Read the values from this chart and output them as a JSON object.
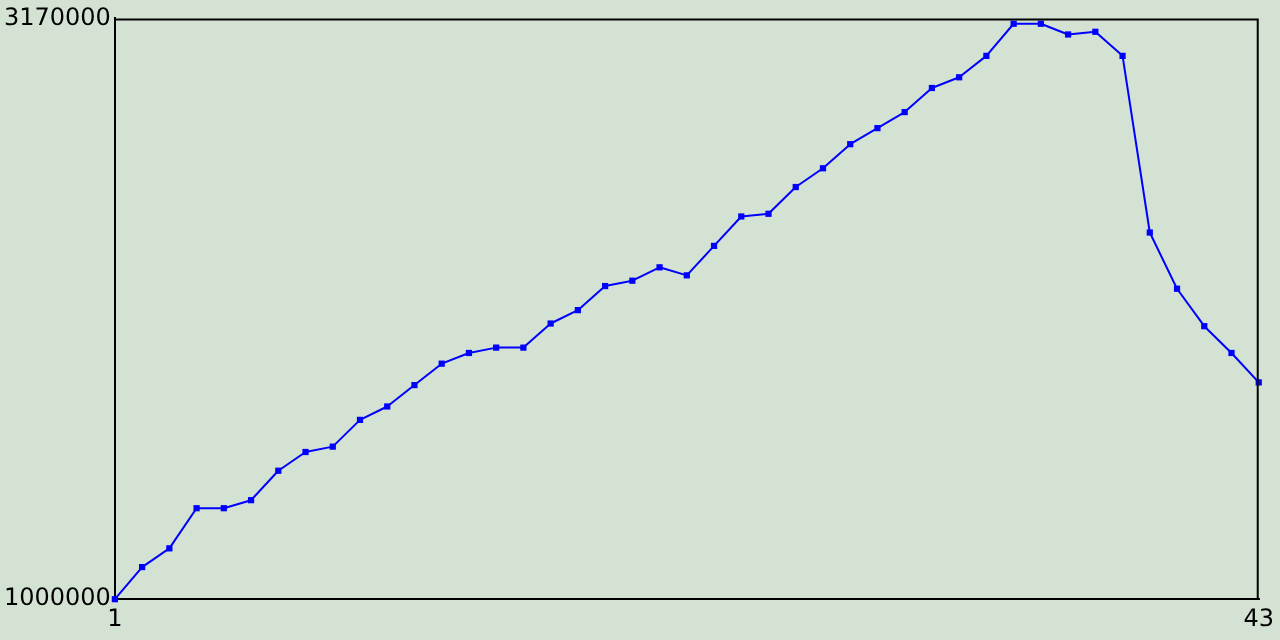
{
  "chart_data": {
    "type": "line",
    "x": [
      1,
      2,
      3,
      4,
      5,
      6,
      7,
      8,
      9,
      10,
      11,
      12,
      13,
      14,
      15,
      16,
      17,
      18,
      19,
      20,
      21,
      22,
      23,
      24,
      25,
      26,
      27,
      28,
      29,
      30,
      31,
      32,
      33,
      34,
      35,
      36,
      37,
      38,
      39,
      40,
      41,
      42,
      43
    ],
    "series": [
      {
        "color": "#0000ff",
        "values": [
          1000000,
          1120000,
          1190000,
          1340000,
          1340000,
          1370000,
          1480000,
          1550000,
          1570000,
          1670000,
          1720000,
          1800000,
          1880000,
          1920000,
          1940000,
          1940000,
          2030000,
          2080000,
          2170000,
          2190000,
          2240000,
          2210000,
          2320000,
          2430000,
          2440000,
          2540000,
          2610000,
          2700000,
          2760000,
          2820000,
          2910000,
          2950000,
          3030000,
          3150000,
          3150000,
          3110000,
          3120000,
          3030000,
          2370000,
          2160000,
          2020000,
          1920000,
          1810000
        ]
      }
    ],
    "xlim": [
      1,
      43
    ],
    "xticks": [
      1,
      43
    ],
    "ylim": [
      1000000,
      3170000
    ],
    "yticks": [
      1000000,
      3170000
    ],
    "grid": false,
    "legend": false,
    "marker": "square",
    "line_style": "solid"
  }
}
